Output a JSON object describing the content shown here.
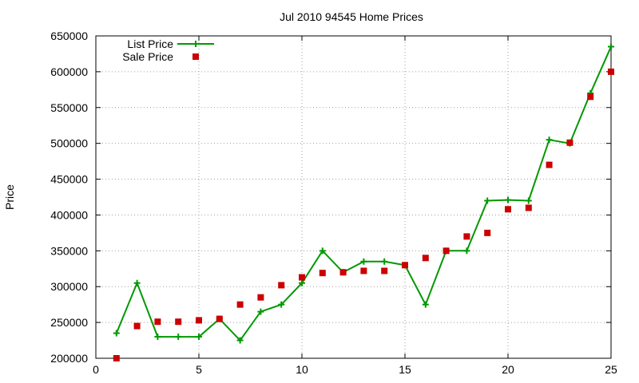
{
  "chart_data": {
    "type": "line",
    "title": "Jul 2010 94545 Home Prices",
    "xlabel": "",
    "ylabel": "Price",
    "xlim": [
      0,
      25
    ],
    "ylim": [
      200000,
      650000
    ],
    "x_ticks": [
      "0",
      "5",
      "10",
      "15",
      "20",
      "25"
    ],
    "y_ticks": [
      "200000",
      "250000",
      "300000",
      "350000",
      "400000",
      "450000",
      "500000",
      "550000",
      "600000",
      "650000"
    ],
    "grid": true,
    "legend_position": "top-left",
    "series": [
      {
        "name": "List Price",
        "style": "line-with-plus-markers",
        "color": "#009900",
        "x": [
          1,
          2,
          3,
          4,
          5,
          6,
          7,
          8,
          9,
          10,
          11,
          12,
          13,
          14,
          15,
          16,
          17,
          18,
          19,
          20,
          21,
          22,
          23,
          24,
          25
        ],
        "y": [
          235000,
          305000,
          230000,
          230000,
          230000,
          255000,
          225000,
          265000,
          275000,
          305000,
          350000,
          320000,
          335000,
          335000,
          330000,
          275000,
          350000,
          350000,
          420000,
          421000,
          420000,
          505000,
          500000,
          570000,
          635000
        ]
      },
      {
        "name": "Sale Price",
        "style": "square-markers",
        "color": "#cc0000",
        "x": [
          1,
          2,
          3,
          4,
          5,
          6,
          7,
          8,
          9,
          10,
          11,
          12,
          13,
          14,
          15,
          16,
          17,
          18,
          19,
          20,
          21,
          22,
          23,
          24,
          25
        ],
        "y": [
          200000,
          245000,
          251000,
          251000,
          253000,
          255000,
          275000,
          285000,
          302000,
          313000,
          319000,
          320000,
          322000,
          322000,
          330000,
          340000,
          350000,
          370000,
          375000,
          408000,
          410000,
          470000,
          501000,
          565000,
          600000
        ]
      }
    ]
  }
}
